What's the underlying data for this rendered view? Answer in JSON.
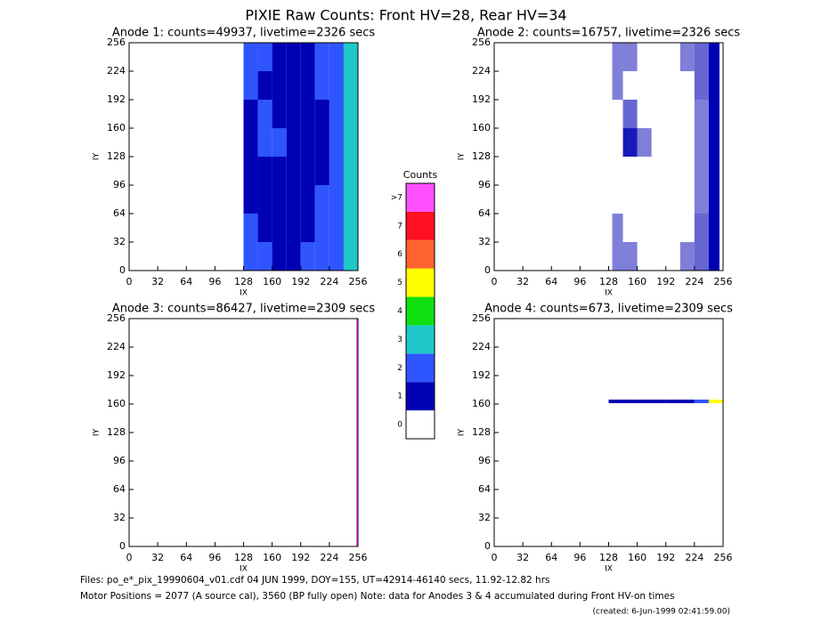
{
  "title": "PIXIE Raw Counts:  Front HV=28, Rear HV=34",
  "chart_data": [
    {
      "type": "heatmap",
      "title": "Anode 1: counts=49937, livetime=2326 secs",
      "x_label": "IX",
      "y_label": "IY",
      "xlim": [
        0,
        256
      ],
      "ylim": [
        0,
        256
      ],
      "xticks": [
        0,
        32,
        64,
        96,
        128,
        160,
        192,
        224,
        256
      ],
      "yticks": [
        0,
        32,
        64,
        96,
        128,
        160,
        192,
        224,
        256
      ],
      "xedges": [
        128,
        144,
        160,
        176,
        192,
        208,
        224,
        240,
        256
      ],
      "yedges": [
        0,
        32,
        64,
        96,
        128,
        160,
        192,
        224,
        256
      ],
      "z": [
        [
          1.6,
          1.5,
          1.4,
          1.4,
          1.5,
          1.6,
          1.9,
          2.8
        ],
        [
          1.5,
          1.4,
          1.3,
          1.3,
          1.4,
          1.6,
          1.8,
          2.7
        ],
        [
          1.4,
          1.3,
          1.2,
          1.2,
          1.3,
          1.5,
          1.8,
          2.6
        ],
        [
          1.3,
          1.3,
          1.2,
          1.1,
          1.2,
          1.4,
          1.7,
          2.6
        ],
        [
          1.4,
          2.4,
          1.5,
          1.2,
          1.2,
          1.4,
          1.7,
          2.7
        ],
        [
          1.4,
          1.8,
          1.4,
          1.2,
          1.2,
          1.4,
          1.8,
          2.8
        ],
        [
          1.5,
          1.4,
          1.3,
          1.3,
          1.3,
          1.5,
          1.9,
          2.8
        ],
        [
          1.6,
          1.5,
          1.4,
          1.4,
          1.4,
          1.6,
          1.9,
          2.9
        ]
      ]
    },
    {
      "type": "heatmap",
      "title": "Anode 2: counts=16757, livetime=2326 secs",
      "x_label": "IX",
      "y_label": "IY",
      "xlim": [
        0,
        256
      ],
      "ylim": [
        0,
        256
      ],
      "xticks": [
        0,
        32,
        64,
        96,
        128,
        160,
        192,
        224,
        256
      ],
      "yticks": [
        0,
        32,
        64,
        96,
        128,
        160,
        192,
        224,
        256
      ],
      "xedges": [
        132,
        144,
        160,
        176,
        192,
        208,
        224,
        240,
        252
      ],
      "yedges": [
        0,
        32,
        64,
        96,
        128,
        160,
        192,
        224,
        256
      ],
      "z": [
        [
          0.5,
          0.5,
          0.4,
          0.4,
          0.4,
          0.5,
          0.6,
          1.3
        ],
        [
          0.5,
          0.4,
          0.4,
          0.3,
          0.4,
          0.4,
          0.6,
          1.2
        ],
        [
          0.4,
          0.4,
          0.3,
          0.3,
          0.3,
          0.4,
          0.5,
          1.2
        ],
        [
          0.4,
          0.4,
          0.3,
          0.3,
          0.3,
          0.4,
          0.5,
          1.1
        ],
        [
          0.4,
          0.9,
          0.5,
          0.3,
          0.3,
          0.4,
          0.5,
          1.2
        ],
        [
          0.4,
          0.6,
          0.4,
          0.3,
          0.3,
          0.4,
          0.5,
          1.2
        ],
        [
          0.5,
          0.4,
          0.4,
          0.3,
          0.4,
          0.4,
          0.6,
          1.3
        ],
        [
          0.5,
          0.5,
          0.4,
          0.4,
          0.4,
          0.5,
          0.6,
          1.3
        ]
      ]
    },
    {
      "type": "heatmap",
      "title": "Anode 3: counts=86427, livetime=2309 secs",
      "x_label": "IX",
      "y_label": "IY",
      "xlim": [
        0,
        256
      ],
      "ylim": [
        0,
        256
      ],
      "xticks": [
        0,
        32,
        64,
        96,
        128,
        160,
        192,
        224,
        256
      ],
      "yticks": [
        0,
        32,
        64,
        96,
        128,
        160,
        192,
        224,
        256
      ],
      "xedges": [
        254,
        256
      ],
      "yedges": [
        0,
        256
      ],
      "z": [
        [
          9
        ]
      ]
    },
    {
      "type": "heatmap",
      "title": "Anode 4: counts=673, livetime=2309 secs",
      "x_label": "IX",
      "y_label": "IY",
      "xlim": [
        0,
        256
      ],
      "ylim": [
        0,
        256
      ],
      "xticks": [
        0,
        32,
        64,
        96,
        128,
        160,
        192,
        224,
        256
      ],
      "yticks": [
        0,
        32,
        64,
        96,
        128,
        160,
        192,
        224,
        256
      ],
      "xedges": [
        128,
        160,
        192,
        224,
        240,
        256
      ],
      "yedges": [
        161,
        165
      ],
      "z": [
        [
          1,
          1,
          1,
          2,
          5
        ]
      ]
    }
  ],
  "colorbar": {
    "title": "Counts",
    "levels": [
      0,
      1,
      2,
      3,
      4,
      5,
      6,
      7,
      {
        "value": 8,
        "label": ">7"
      }
    ],
    "colors": [
      "#ffffff",
      "#0000b4",
      "#2f55ff",
      "#1ec8c8",
      "#10e010",
      "#ffff00",
      "#ff6430",
      "#ff1020",
      "#ff50ff"
    ]
  },
  "footer": [
    "Files: po_e*_pix_19990604_v01.cdf    04 JUN 1999, DOY=155, UT=42914-46140 secs, 11.92-12.82 hrs",
    "Motor Positions = 2077 (A source cal), 3560 (BP fully open)    Note: data for Anodes 3 & 4 accumulated during Front HV-on times",
    "(created:  6-Jun-1999 02:41:59.00)"
  ]
}
